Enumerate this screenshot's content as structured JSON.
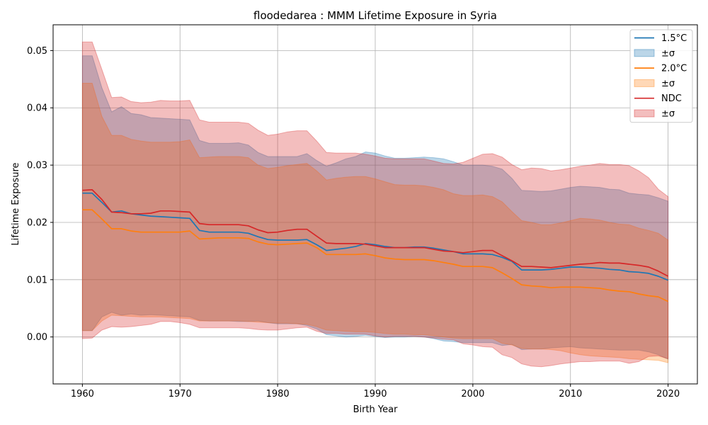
{
  "chart_data": {
    "type": "line",
    "title": "floodedarea : MMM Lifetime Exposure in Syria",
    "xlabel": "Birth Year",
    "ylabel": "Lifetime Exposure",
    "xlim": [
      1957,
      2023
    ],
    "ylim": [
      -0.0082,
      0.0545
    ],
    "xticks": [
      1960,
      1970,
      1980,
      1990,
      2000,
      2010,
      2020
    ],
    "yticks": [
      0.0,
      0.01,
      0.02,
      0.03,
      0.04,
      0.05
    ],
    "ytick_labels": [
      "0.00",
      "0.01",
      "0.02",
      "0.03",
      "0.04",
      "0.05"
    ],
    "grid": true,
    "legend_position": "top-right",
    "x": [
      1960,
      1961,
      1962,
      1963,
      1964,
      1965,
      1966,
      1967,
      1968,
      1969,
      1970,
      1971,
      1972,
      1973,
      1974,
      1975,
      1976,
      1977,
      1978,
      1979,
      1980,
      1981,
      1982,
      1983,
      1984,
      1985,
      1986,
      1987,
      1988,
      1989,
      1990,
      1991,
      1992,
      1993,
      1994,
      1995,
      1996,
      1997,
      1998,
      1999,
      2000,
      2001,
      2002,
      2003,
      2004,
      2005,
      2006,
      2007,
      2008,
      2009,
      2010,
      2011,
      2012,
      2013,
      2014,
      2015,
      2016,
      2017,
      2018,
      2019,
      2020
    ],
    "series": [
      {
        "name": "1.5°C",
        "band_label": "±σ",
        "color": "#1f77b4",
        "band_color": "#1f77b4",
        "values": [
          0.0251,
          0.0251,
          0.0235,
          0.0218,
          0.022,
          0.0215,
          0.0213,
          0.0211,
          0.021,
          0.0209,
          0.0208,
          0.0207,
          0.0186,
          0.0183,
          0.0183,
          0.0183,
          0.0183,
          0.0181,
          0.0175,
          0.017,
          0.0169,
          0.0169,
          0.0169,
          0.017,
          0.0161,
          0.0151,
          0.0153,
          0.0155,
          0.0158,
          0.0163,
          0.0161,
          0.0158,
          0.0156,
          0.0156,
          0.0157,
          0.0157,
          0.0155,
          0.0152,
          0.0149,
          0.0145,
          0.0145,
          0.0145,
          0.0144,
          0.0139,
          0.0132,
          0.0117,
          0.0117,
          0.0117,
          0.0118,
          0.012,
          0.0122,
          0.0122,
          0.0121,
          0.012,
          0.0118,
          0.0117,
          0.0114,
          0.0113,
          0.0111,
          0.0106,
          0.0099
        ],
        "upper": [
          0.0491,
          0.0491,
          0.0435,
          0.0393,
          0.0402,
          0.039,
          0.0388,
          0.0383,
          0.0382,
          0.0381,
          0.038,
          0.0379,
          0.0343,
          0.0338,
          0.0338,
          0.0338,
          0.0339,
          0.0335,
          0.0322,
          0.0315,
          0.0315,
          0.0315,
          0.0315,
          0.032,
          0.0308,
          0.0298,
          0.0304,
          0.0311,
          0.0315,
          0.0323,
          0.0321,
          0.0316,
          0.0312,
          0.0312,
          0.0313,
          0.0314,
          0.0313,
          0.0311,
          0.0306,
          0.03,
          0.03,
          0.03,
          0.0298,
          0.0293,
          0.0277,
          0.0256,
          0.0255,
          0.0254,
          0.0255,
          0.0258,
          0.0261,
          0.0263,
          0.0262,
          0.0261,
          0.0258,
          0.0257,
          0.0251,
          0.0249,
          0.0248,
          0.0243,
          0.0237
        ],
        "lower": [
          0.0011,
          0.0011,
          0.0035,
          0.0043,
          0.0038,
          0.004,
          0.0038,
          0.0039,
          0.0038,
          0.0037,
          0.0036,
          0.0035,
          0.0029,
          0.0028,
          0.0028,
          0.0028,
          0.0027,
          0.0027,
          0.0028,
          0.0025,
          0.0023,
          0.0023,
          0.0023,
          0.002,
          0.0014,
          0.0004,
          0.0002,
          0.0,
          0.0001,
          0.0003,
          0.0001,
          -0.0001,
          0.0,
          0.0,
          0.0001,
          0.0,
          -0.0003,
          -0.0007,
          -0.0008,
          -0.001,
          -0.001,
          -0.001,
          -0.001,
          -0.0015,
          -0.0013,
          -0.0022,
          -0.0021,
          -0.0021,
          -0.0019,
          -0.0018,
          -0.0017,
          -0.0019,
          -0.002,
          -0.0021,
          -0.0022,
          -0.0023,
          -0.0023,
          -0.0023,
          -0.0026,
          -0.0031,
          -0.0039
        ]
      },
      {
        "name": "2.0°C",
        "band_label": "±σ",
        "color": "#ff7f0e",
        "band_color": "#ff7f0e",
        "values": [
          0.0222,
          0.0222,
          0.0206,
          0.0189,
          0.0189,
          0.0185,
          0.0183,
          0.0183,
          0.0183,
          0.0183,
          0.0183,
          0.0185,
          0.0171,
          0.0172,
          0.0173,
          0.0173,
          0.0173,
          0.0172,
          0.0166,
          0.0162,
          0.0161,
          0.0162,
          0.0163,
          0.0164,
          0.0156,
          0.0144,
          0.0144,
          0.0144,
          0.0144,
          0.0145,
          0.0142,
          0.0138,
          0.0136,
          0.0135,
          0.0135,
          0.0135,
          0.0133,
          0.013,
          0.0127,
          0.0123,
          0.0123,
          0.0123,
          0.0121,
          0.0112,
          0.0102,
          0.0091,
          0.0089,
          0.0088,
          0.0086,
          0.0087,
          0.0087,
          0.0087,
          0.0086,
          0.0085,
          0.0082,
          0.008,
          0.0079,
          0.0075,
          0.0072,
          0.007,
          0.0062
        ],
        "upper": [
          0.0443,
          0.0443,
          0.0385,
          0.0352,
          0.0352,
          0.0345,
          0.0342,
          0.034,
          0.034,
          0.034,
          0.0341,
          0.0344,
          0.0313,
          0.0314,
          0.0315,
          0.0315,
          0.0315,
          0.0313,
          0.03,
          0.0294,
          0.0296,
          0.0299,
          0.0301,
          0.0303,
          0.029,
          0.0274,
          0.0277,
          0.0279,
          0.028,
          0.028,
          0.0276,
          0.0271,
          0.0266,
          0.0265,
          0.0265,
          0.0264,
          0.0261,
          0.0257,
          0.025,
          0.0247,
          0.0247,
          0.0248,
          0.0245,
          0.0236,
          0.0219,
          0.0203,
          0.02,
          0.0196,
          0.0196,
          0.0199,
          0.0203,
          0.0207,
          0.0206,
          0.0204,
          0.02,
          0.0197,
          0.0196,
          0.019,
          0.0186,
          0.0181,
          0.0169
        ],
        "lower": [
          0.0011,
          0.0011,
          0.0028,
          0.0038,
          0.0037,
          0.0036,
          0.0035,
          0.0035,
          0.0035,
          0.0034,
          0.0033,
          0.0032,
          0.0028,
          0.0028,
          0.0028,
          0.0028,
          0.0028,
          0.0027,
          0.0026,
          0.0025,
          0.0024,
          0.0024,
          0.0023,
          0.0022,
          0.0018,
          0.0012,
          0.0011,
          0.001,
          0.0009,
          0.0009,
          0.0008,
          0.0006,
          0.0005,
          0.0005,
          0.0004,
          0.0004,
          0.0002,
          0.0,
          -0.0002,
          -0.0003,
          -0.0003,
          -0.0003,
          -0.0003,
          -0.0011,
          -0.0014,
          -0.002,
          -0.0021,
          -0.0021,
          -0.0022,
          -0.0024,
          -0.0028,
          -0.0031,
          -0.0033,
          -0.0034,
          -0.0035,
          -0.0036,
          -0.0038,
          -0.0039,
          -0.004,
          -0.0041,
          -0.0045
        ]
      },
      {
        "name": "NDC",
        "band_label": "±σ",
        "color": "#d62728",
        "band_color": "#d62728",
        "values": [
          0.0256,
          0.0257,
          0.024,
          0.0218,
          0.0217,
          0.0215,
          0.0215,
          0.0216,
          0.022,
          0.022,
          0.0219,
          0.0218,
          0.0198,
          0.0196,
          0.0196,
          0.0196,
          0.0196,
          0.0194,
          0.0187,
          0.0182,
          0.0183,
          0.0186,
          0.0188,
          0.0188,
          0.0176,
          0.0164,
          0.0163,
          0.0163,
          0.0163,
          0.0162,
          0.0159,
          0.0156,
          0.0156,
          0.0156,
          0.0156,
          0.0156,
          0.0153,
          0.015,
          0.0149,
          0.0147,
          0.0149,
          0.0151,
          0.0151,
          0.0142,
          0.0133,
          0.0123,
          0.0123,
          0.0122,
          0.0121,
          0.0123,
          0.0125,
          0.0127,
          0.0128,
          0.013,
          0.0129,
          0.0129,
          0.0127,
          0.0125,
          0.0122,
          0.0115,
          0.0106
        ],
        "upper": [
          0.0515,
          0.0515,
          0.0467,
          0.0418,
          0.0419,
          0.0411,
          0.0409,
          0.041,
          0.0413,
          0.0412,
          0.0412,
          0.0413,
          0.0379,
          0.0375,
          0.0375,
          0.0375,
          0.0375,
          0.0373,
          0.0361,
          0.0352,
          0.0354,
          0.0358,
          0.036,
          0.036,
          0.0342,
          0.0322,
          0.0321,
          0.0321,
          0.0321,
          0.0319,
          0.0316,
          0.0312,
          0.0311,
          0.0311,
          0.0311,
          0.0311,
          0.0307,
          0.0303,
          0.0302,
          0.0305,
          0.0312,
          0.0319,
          0.032,
          0.0314,
          0.0301,
          0.0292,
          0.0295,
          0.0294,
          0.029,
          0.0292,
          0.0295,
          0.0298,
          0.03,
          0.0303,
          0.0301,
          0.0301,
          0.0299,
          0.029,
          0.0278,
          0.0258,
          0.0245
        ],
        "lower": [
          -0.0003,
          -0.0002,
          0.0012,
          0.0018,
          0.0017,
          0.0018,
          0.002,
          0.0022,
          0.0027,
          0.0027,
          0.0025,
          0.0022,
          0.0016,
          0.0016,
          0.0016,
          0.0016,
          0.0016,
          0.0015,
          0.0013,
          0.0012,
          0.0012,
          0.0014,
          0.0016,
          0.0017,
          0.001,
          0.0006,
          0.0006,
          0.0005,
          0.0005,
          0.0005,
          0.0002,
          0.0,
          0.0001,
          0.0001,
          0.0001,
          0.0,
          -0.0002,
          -0.0004,
          -0.0005,
          -0.0012,
          -0.0014,
          -0.0017,
          -0.0018,
          -0.0031,
          -0.0036,
          -0.0047,
          -0.0051,
          -0.0052,
          -0.005,
          -0.0047,
          -0.0045,
          -0.0043,
          -0.0043,
          -0.0042,
          -0.0042,
          -0.0042,
          -0.0046,
          -0.0043,
          -0.0034,
          -0.0033,
          -0.0038
        ]
      }
    ]
  }
}
